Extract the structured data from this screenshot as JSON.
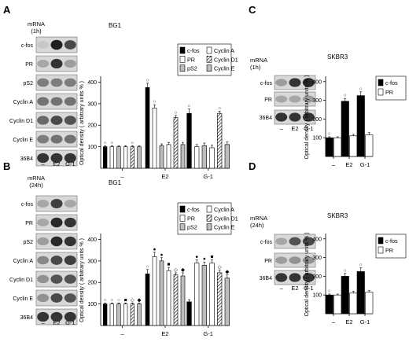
{
  "panels": {
    "A": {
      "letter": "A",
      "mrna_line1": "mRNA",
      "mrna_line2": "(1h)",
      "cell": "BG1"
    },
    "B": {
      "letter": "B",
      "mrna_line1": "mRNA",
      "mrna_line2": "(24h)",
      "cell": "BG1"
    },
    "C": {
      "letter": "C",
      "mrna_line1": "mRNA",
      "mrna_line2": "(1h)",
      "cell": "SKBR3"
    },
    "D": {
      "letter": "D",
      "mrna_line1": "mRNA",
      "mrna_line2": "(24h)",
      "cell": "SKBR3"
    }
  },
  "blot_lanes": [
    "–",
    "E2",
    "G-1"
  ],
  "blot_genes_bg1": [
    "c-fos",
    "PR",
    "pS2",
    "Cyclin A",
    "Cyclin D1",
    "Cyclin E",
    "36B4"
  ],
  "blot_genes_skbr3": [
    "c-fos",
    "PR",
    "36B4"
  ],
  "colors": {
    "black": "#000000",
    "white": "#ffffff",
    "gray": "#bdbdbd",
    "hatch": "diagonal-stripes"
  },
  "chart_data": [
    {
      "id": "A",
      "type": "bar",
      "ylabel": "Optical density ( arbitrary units % )",
      "yticks": [
        100,
        200,
        300,
        400
      ],
      "ylim": [
        0,
        420
      ],
      "categories": [
        "–",
        "E2",
        "G-1"
      ],
      "legend_position": "top-right",
      "series": [
        {
          "name": "c-fos",
          "fill": "black",
          "values": [
            100,
            375,
            255
          ],
          "errors": [
            5,
            20,
            20
          ],
          "marker": [
            "○",
            "○",
            "○"
          ]
        },
        {
          "name": "PR",
          "fill": "white",
          "values": [
            100,
            280,
            100
          ],
          "errors": [
            5,
            15,
            10
          ],
          "marker": [
            "○",
            "○",
            ""
          ]
        },
        {
          "name": "pS2",
          "fill": "gray",
          "values": [
            100,
            105,
            105
          ],
          "errors": [
            5,
            8,
            12
          ],
          "marker": [
            "",
            "",
            ""
          ]
        },
        {
          "name": "Cyclin A",
          "fill": "white",
          "values": [
            100,
            110,
            95
          ],
          "errors": [
            5,
            10,
            12
          ],
          "marker": [
            "",
            "",
            ""
          ]
        },
        {
          "name": "Cyclin D1",
          "fill": "hatch",
          "values": [
            100,
            235,
            255
          ],
          "errors": [
            5,
            10,
            10
          ],
          "marker": [
            "○",
            "○",
            "○"
          ]
        },
        {
          "name": "Cyclin E",
          "fill": "gray",
          "values": [
            100,
            110,
            110
          ],
          "errors": [
            5,
            10,
            12
          ],
          "marker": [
            "",
            "",
            ""
          ]
        }
      ]
    },
    {
      "id": "B",
      "type": "bar",
      "ylabel": "Optical density ( arbitrary units % )",
      "yticks": [
        100,
        200,
        300,
        400
      ],
      "ylim": [
        0,
        420
      ],
      "categories": [
        "–",
        "E2",
        "G-1"
      ],
      "legend_position": "top-right",
      "series": [
        {
          "name": "c-fos",
          "fill": "black",
          "values": [
            100,
            240,
            110
          ],
          "errors": [
            5,
            20,
            10
          ],
          "marker": [
            "○",
            "○",
            ""
          ]
        },
        {
          "name": "PR",
          "fill": "white",
          "values": [
            100,
            320,
            290
          ],
          "errors": [
            5,
            20,
            15
          ],
          "marker": [
            "○",
            "●",
            "●"
          ]
        },
        {
          "name": "pS2",
          "fill": "gray",
          "values": [
            100,
            300,
            280
          ],
          "errors": [
            5,
            15,
            15
          ],
          "marker": [
            "○",
            "●",
            "●"
          ]
        },
        {
          "name": "Cyclin A",
          "fill": "white",
          "values": [
            100,
            255,
            290
          ],
          "errors": [
            5,
            15,
            15
          ],
          "marker": [
            "■",
            "■",
            "■"
          ]
        },
        {
          "name": "Cyclin D1",
          "fill": "hatch",
          "values": [
            100,
            235,
            245
          ],
          "errors": [
            5,
            10,
            12
          ],
          "marker": [
            "◇",
            "◇",
            "◇"
          ]
        },
        {
          "name": "Cyclin E",
          "fill": "gray",
          "values": [
            100,
            230,
            220
          ],
          "errors": [
            5,
            15,
            15
          ],
          "marker": [
            "◆",
            "◆",
            "◆"
          ]
        }
      ]
    },
    {
      "id": "C",
      "type": "bar",
      "ylabel": "Optical density ( arbitrary units % )",
      "yticks": [
        100,
        200,
        300,
        400
      ],
      "ylim": [
        0,
        420
      ],
      "categories": [
        "–",
        "E2",
        "G-1"
      ],
      "legend_position": "top-right",
      "series": [
        {
          "name": "c-fos",
          "fill": "black",
          "values": [
            100,
            295,
            325
          ],
          "errors": [
            5,
            15,
            20
          ],
          "marker": [
            "○",
            "○",
            "○"
          ]
        },
        {
          "name": "PR",
          "fill": "white",
          "values": [
            100,
            110,
            115
          ],
          "errors": [
            5,
            8,
            12
          ],
          "marker": [
            "",
            "",
            ""
          ]
        }
      ]
    },
    {
      "id": "D",
      "type": "bar",
      "ylabel": "Optical density ( arbitrary units % )",
      "yticks": [
        100,
        200,
        300,
        400
      ],
      "ylim": [
        0,
        420
      ],
      "categories": [
        "–",
        "E2",
        "G-1"
      ],
      "legend_position": "top-right",
      "series": [
        {
          "name": "c-fos",
          "fill": "black",
          "values": [
            100,
            200,
            225
          ],
          "errors": [
            5,
            15,
            20
          ],
          "marker": [
            "○",
            "○",
            "○"
          ]
        },
        {
          "name": "PR",
          "fill": "white",
          "values": [
            100,
            110,
            115
          ],
          "errors": [
            5,
            10,
            8
          ],
          "marker": [
            "",
            "",
            ""
          ]
        }
      ]
    }
  ]
}
